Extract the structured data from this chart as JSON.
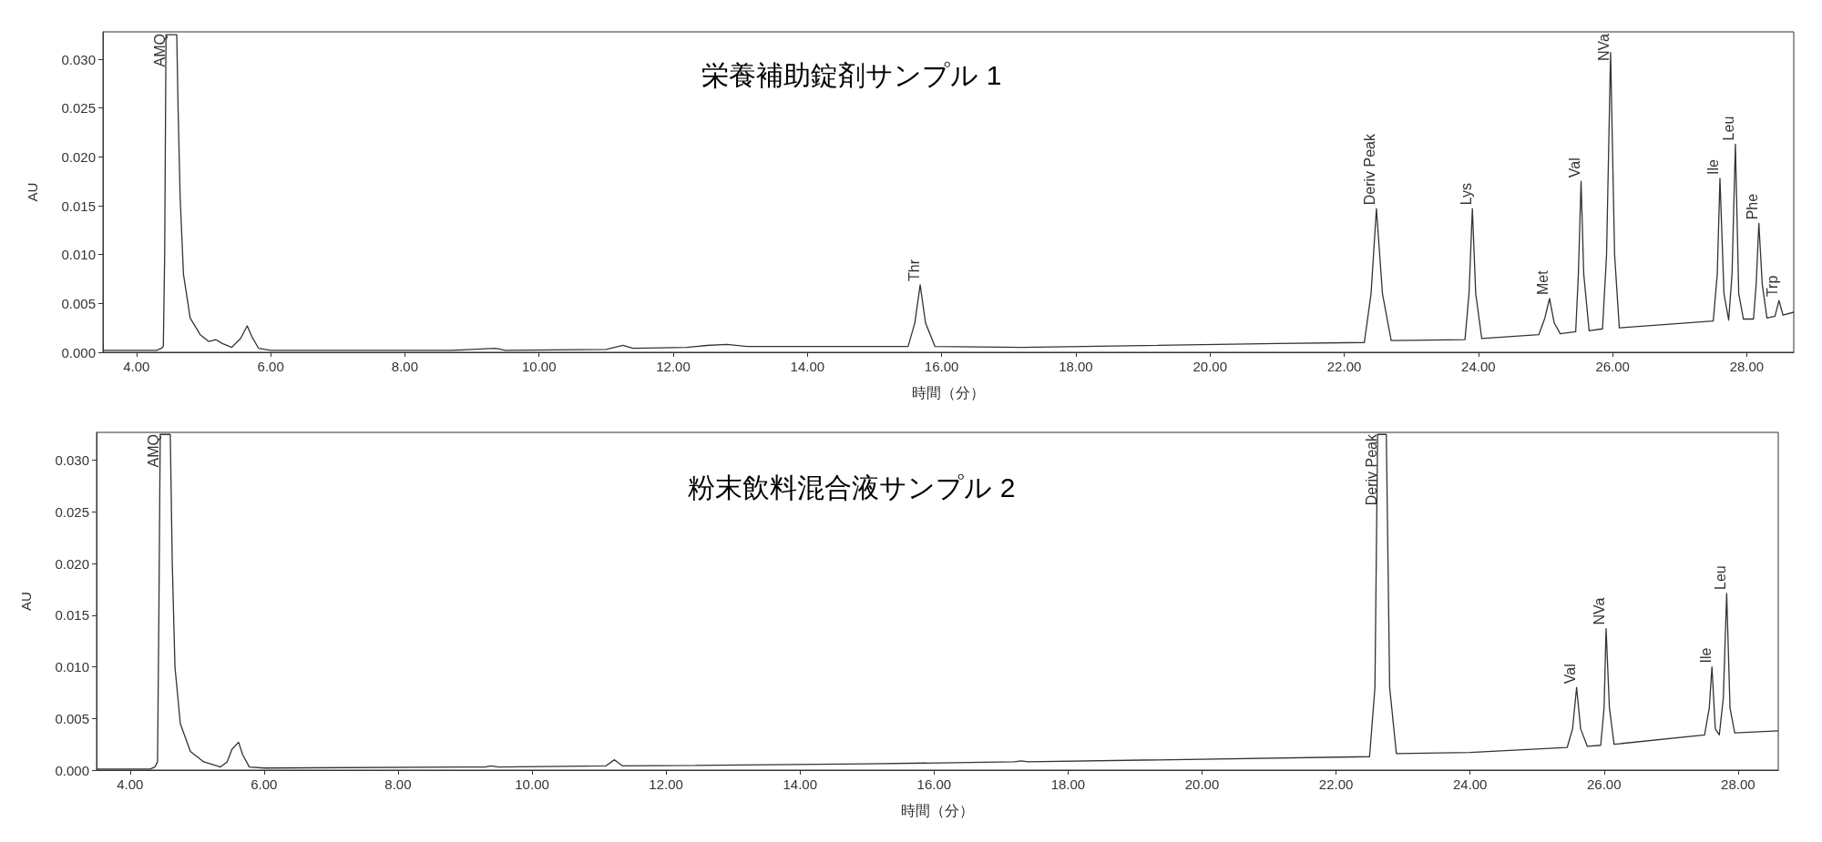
{
  "chart_data": [
    {
      "type": "line",
      "title": "栄養補助錠剤サンプル 1",
      "xlabel": "時間（分）",
      "ylabel": "AU",
      "color": "#333333",
      "marker": "none",
      "line_style": "solid",
      "grid": false,
      "x": [
        3.5,
        4.3,
        4.37,
        4.4,
        4.42,
        4.44,
        4.6,
        4.62,
        4.65,
        4.7,
        4.8,
        4.95,
        5.08,
        5.18,
        5.28,
        5.42,
        5.55,
        5.65,
        5.72,
        5.82,
        6.0,
        8.7,
        9.35,
        9.5,
        11.0,
        11.25,
        11.4,
        12.2,
        12.5,
        12.8,
        13.1,
        15.5,
        15.6,
        15.68,
        15.76,
        15.9,
        17.2,
        21.0,
        22.3,
        22.4,
        22.48,
        22.57,
        22.7,
        23.8,
        23.86,
        23.91,
        23.96,
        24.05,
        24.9,
        24.99,
        25.06,
        25.13,
        25.22,
        25.45,
        25.49,
        25.53,
        25.57,
        25.65,
        25.85,
        25.91,
        25.97,
        26.03,
        26.1,
        27.5,
        27.56,
        27.6,
        27.66,
        27.73,
        27.78,
        27.83,
        27.88,
        27.95,
        28.1,
        28.14,
        28.18,
        28.23,
        28.3,
        28.42,
        28.48,
        28.54,
        28.7
      ],
      "values": [
        0.0002,
        0.0002,
        0.0004,
        0.0006,
        0.01,
        0.0325,
        0.0325,
        0.025,
        0.016,
        0.008,
        0.0035,
        0.0018,
        0.0011,
        0.0013,
        0.0009,
        0.0005,
        0.0014,
        0.0027,
        0.0016,
        0.0004,
        0.0002,
        0.0002,
        0.0004,
        0.0002,
        0.0003,
        0.0007,
        0.0004,
        0.0005,
        0.0007,
        0.0008,
        0.0006,
        0.0006,
        0.003,
        0.0069,
        0.003,
        0.0006,
        0.0005,
        0.0009,
        0.001,
        0.006,
        0.0147,
        0.006,
        0.0012,
        0.0013,
        0.006,
        0.0147,
        0.006,
        0.0014,
        0.0018,
        0.0035,
        0.0055,
        0.003,
        0.0019,
        0.0021,
        0.008,
        0.0175,
        0.008,
        0.0022,
        0.0024,
        0.01,
        0.0307,
        0.01,
        0.0025,
        0.0032,
        0.008,
        0.0178,
        0.006,
        0.0033,
        0.008,
        0.0213,
        0.006,
        0.0034,
        0.0034,
        0.007,
        0.0132,
        0.007,
        0.0035,
        0.0037,
        0.0053,
        0.0038,
        0.0041
      ],
      "xlim": [
        3.5,
        28.7
      ],
      "ylim": [
        0,
        0.0328
      ],
      "xticks": [
        {
          "value": 4,
          "label": "4.00"
        },
        {
          "value": 6,
          "label": "6.00"
        },
        {
          "value": 8,
          "label": "8.00"
        },
        {
          "value": 10,
          "label": "10.00"
        },
        {
          "value": 12,
          "label": "12.00"
        },
        {
          "value": 14,
          "label": "14.00"
        },
        {
          "value": 16,
          "label": "16.00"
        },
        {
          "value": 18,
          "label": "18.00"
        },
        {
          "value": 20,
          "label": "20.00"
        },
        {
          "value": 22,
          "label": "22.00"
        },
        {
          "value": 24,
          "label": "24.00"
        },
        {
          "value": 26,
          "label": "26.00"
        },
        {
          "value": 28,
          "label": "28.00"
        }
      ],
      "yticks": [
        {
          "value": 0,
          "label": "0.000"
        },
        {
          "value": 0.005,
          "label": "0.005"
        },
        {
          "value": 0.01,
          "label": "0.010"
        },
        {
          "value": 0.015,
          "label": "0.015"
        },
        {
          "value": 0.02,
          "label": "0.020"
        },
        {
          "value": 0.025,
          "label": "0.025"
        },
        {
          "value": 0.03,
          "label": "0.030"
        }
      ],
      "annotations": [
        {
          "text": "AMQ",
          "x": 4.44,
          "y": 0.0325
        },
        {
          "text": "Thr",
          "x": 15.68,
          "y": 0.0069
        },
        {
          "text": "Deriv Peak",
          "x": 22.48,
          "y": 0.0147
        },
        {
          "text": "Lys",
          "x": 23.91,
          "y": 0.0147
        },
        {
          "text": "Met",
          "x": 25.06,
          "y": 0.0055
        },
        {
          "text": "Val",
          "x": 25.53,
          "y": 0.0175
        },
        {
          "text": "NVa",
          "x": 25.97,
          "y": 0.0307
        },
        {
          "text": "Ile",
          "x": 27.6,
          "y": 0.0178
        },
        {
          "text": "Leu",
          "x": 27.83,
          "y": 0.0213
        },
        {
          "text": "Phe",
          "x": 28.18,
          "y": 0.0132
        },
        {
          "text": "Trp",
          "x": 28.48,
          "y": 0.0053
        }
      ]
    },
    {
      "type": "line",
      "title": "粉末飲料混合液サンプル 2",
      "xlabel": "時間（分）",
      "ylabel": "AU",
      "color": "#333333",
      "marker": "none",
      "line_style": "solid",
      "grid": false,
      "x": [
        3.5,
        4.3,
        4.37,
        4.41,
        4.43,
        4.45,
        4.6,
        4.63,
        4.67,
        4.75,
        4.9,
        5.1,
        5.35,
        5.45,
        5.52,
        5.62,
        5.68,
        5.78,
        6.0,
        9.3,
        9.38,
        9.5,
        11.1,
        11.23,
        11.35,
        15.0,
        17.2,
        17.3,
        17.4,
        22.5,
        22.58,
        22.62,
        22.75,
        22.8,
        22.9,
        24.0,
        25.45,
        25.53,
        25.59,
        25.65,
        25.75,
        25.95,
        26.0,
        26.03,
        26.08,
        26.15,
        27.5,
        27.57,
        27.61,
        27.66,
        27.72,
        27.78,
        27.83,
        27.88,
        27.95,
        28.6
      ],
      "values": [
        0.0001,
        0.0001,
        0.0003,
        0.0008,
        0.015,
        0.0325,
        0.0325,
        0.02,
        0.01,
        0.0045,
        0.0018,
        0.0008,
        0.0003,
        0.0008,
        0.002,
        0.0027,
        0.0015,
        0.0003,
        0.0002,
        0.0003,
        0.0004,
        0.0003,
        0.0004,
        0.001,
        0.0004,
        0.0006,
        0.0008,
        0.0009,
        0.0008,
        0.0013,
        0.008,
        0.0325,
        0.0325,
        0.008,
        0.0016,
        0.0017,
        0.0022,
        0.004,
        0.008,
        0.004,
        0.0023,
        0.0024,
        0.006,
        0.0137,
        0.006,
        0.0025,
        0.0034,
        0.006,
        0.01,
        0.004,
        0.0034,
        0.007,
        0.0171,
        0.006,
        0.0036,
        0.0038
      ],
      "xlim": [
        3.5,
        28.6
      ],
      "ylim": [
        0,
        0.0327
      ],
      "xticks": [
        {
          "value": 4,
          "label": "4.00"
        },
        {
          "value": 6,
          "label": "6.00"
        },
        {
          "value": 8,
          "label": "8.00"
        },
        {
          "value": 10,
          "label": "10.00"
        },
        {
          "value": 12,
          "label": "12.00"
        },
        {
          "value": 14,
          "label": "14.00"
        },
        {
          "value": 16,
          "label": "16.00"
        },
        {
          "value": 18,
          "label": "18.00"
        },
        {
          "value": 20,
          "label": "20.00"
        },
        {
          "value": 22,
          "label": "22.00"
        },
        {
          "value": 24,
          "label": "24.00"
        },
        {
          "value": 26,
          "label": "26.00"
        },
        {
          "value": 28,
          "label": "28.00"
        }
      ],
      "yticks": [
        {
          "value": 0,
          "label": "0.000"
        },
        {
          "value": 0.005,
          "label": "0.005"
        },
        {
          "value": 0.01,
          "label": "0.010"
        },
        {
          "value": 0.015,
          "label": "0.015"
        },
        {
          "value": 0.02,
          "label": "0.020"
        },
        {
          "value": 0.025,
          "label": "0.025"
        },
        {
          "value": 0.03,
          "label": "0.030"
        }
      ],
      "annotations": [
        {
          "text": "AMQ",
          "x": 4.45,
          "y": 0.0325
        },
        {
          "text": "Deriv Peak",
          "x": 22.62,
          "y": 0.0325
        },
        {
          "text": "Val",
          "x": 25.59,
          "y": 0.008
        },
        {
          "text": "NVa",
          "x": 26.03,
          "y": 0.0137
        },
        {
          "text": "Ile",
          "x": 27.61,
          "y": 0.01
        },
        {
          "text": "Leu",
          "x": 27.83,
          "y": 0.0171
        }
      ]
    }
  ]
}
